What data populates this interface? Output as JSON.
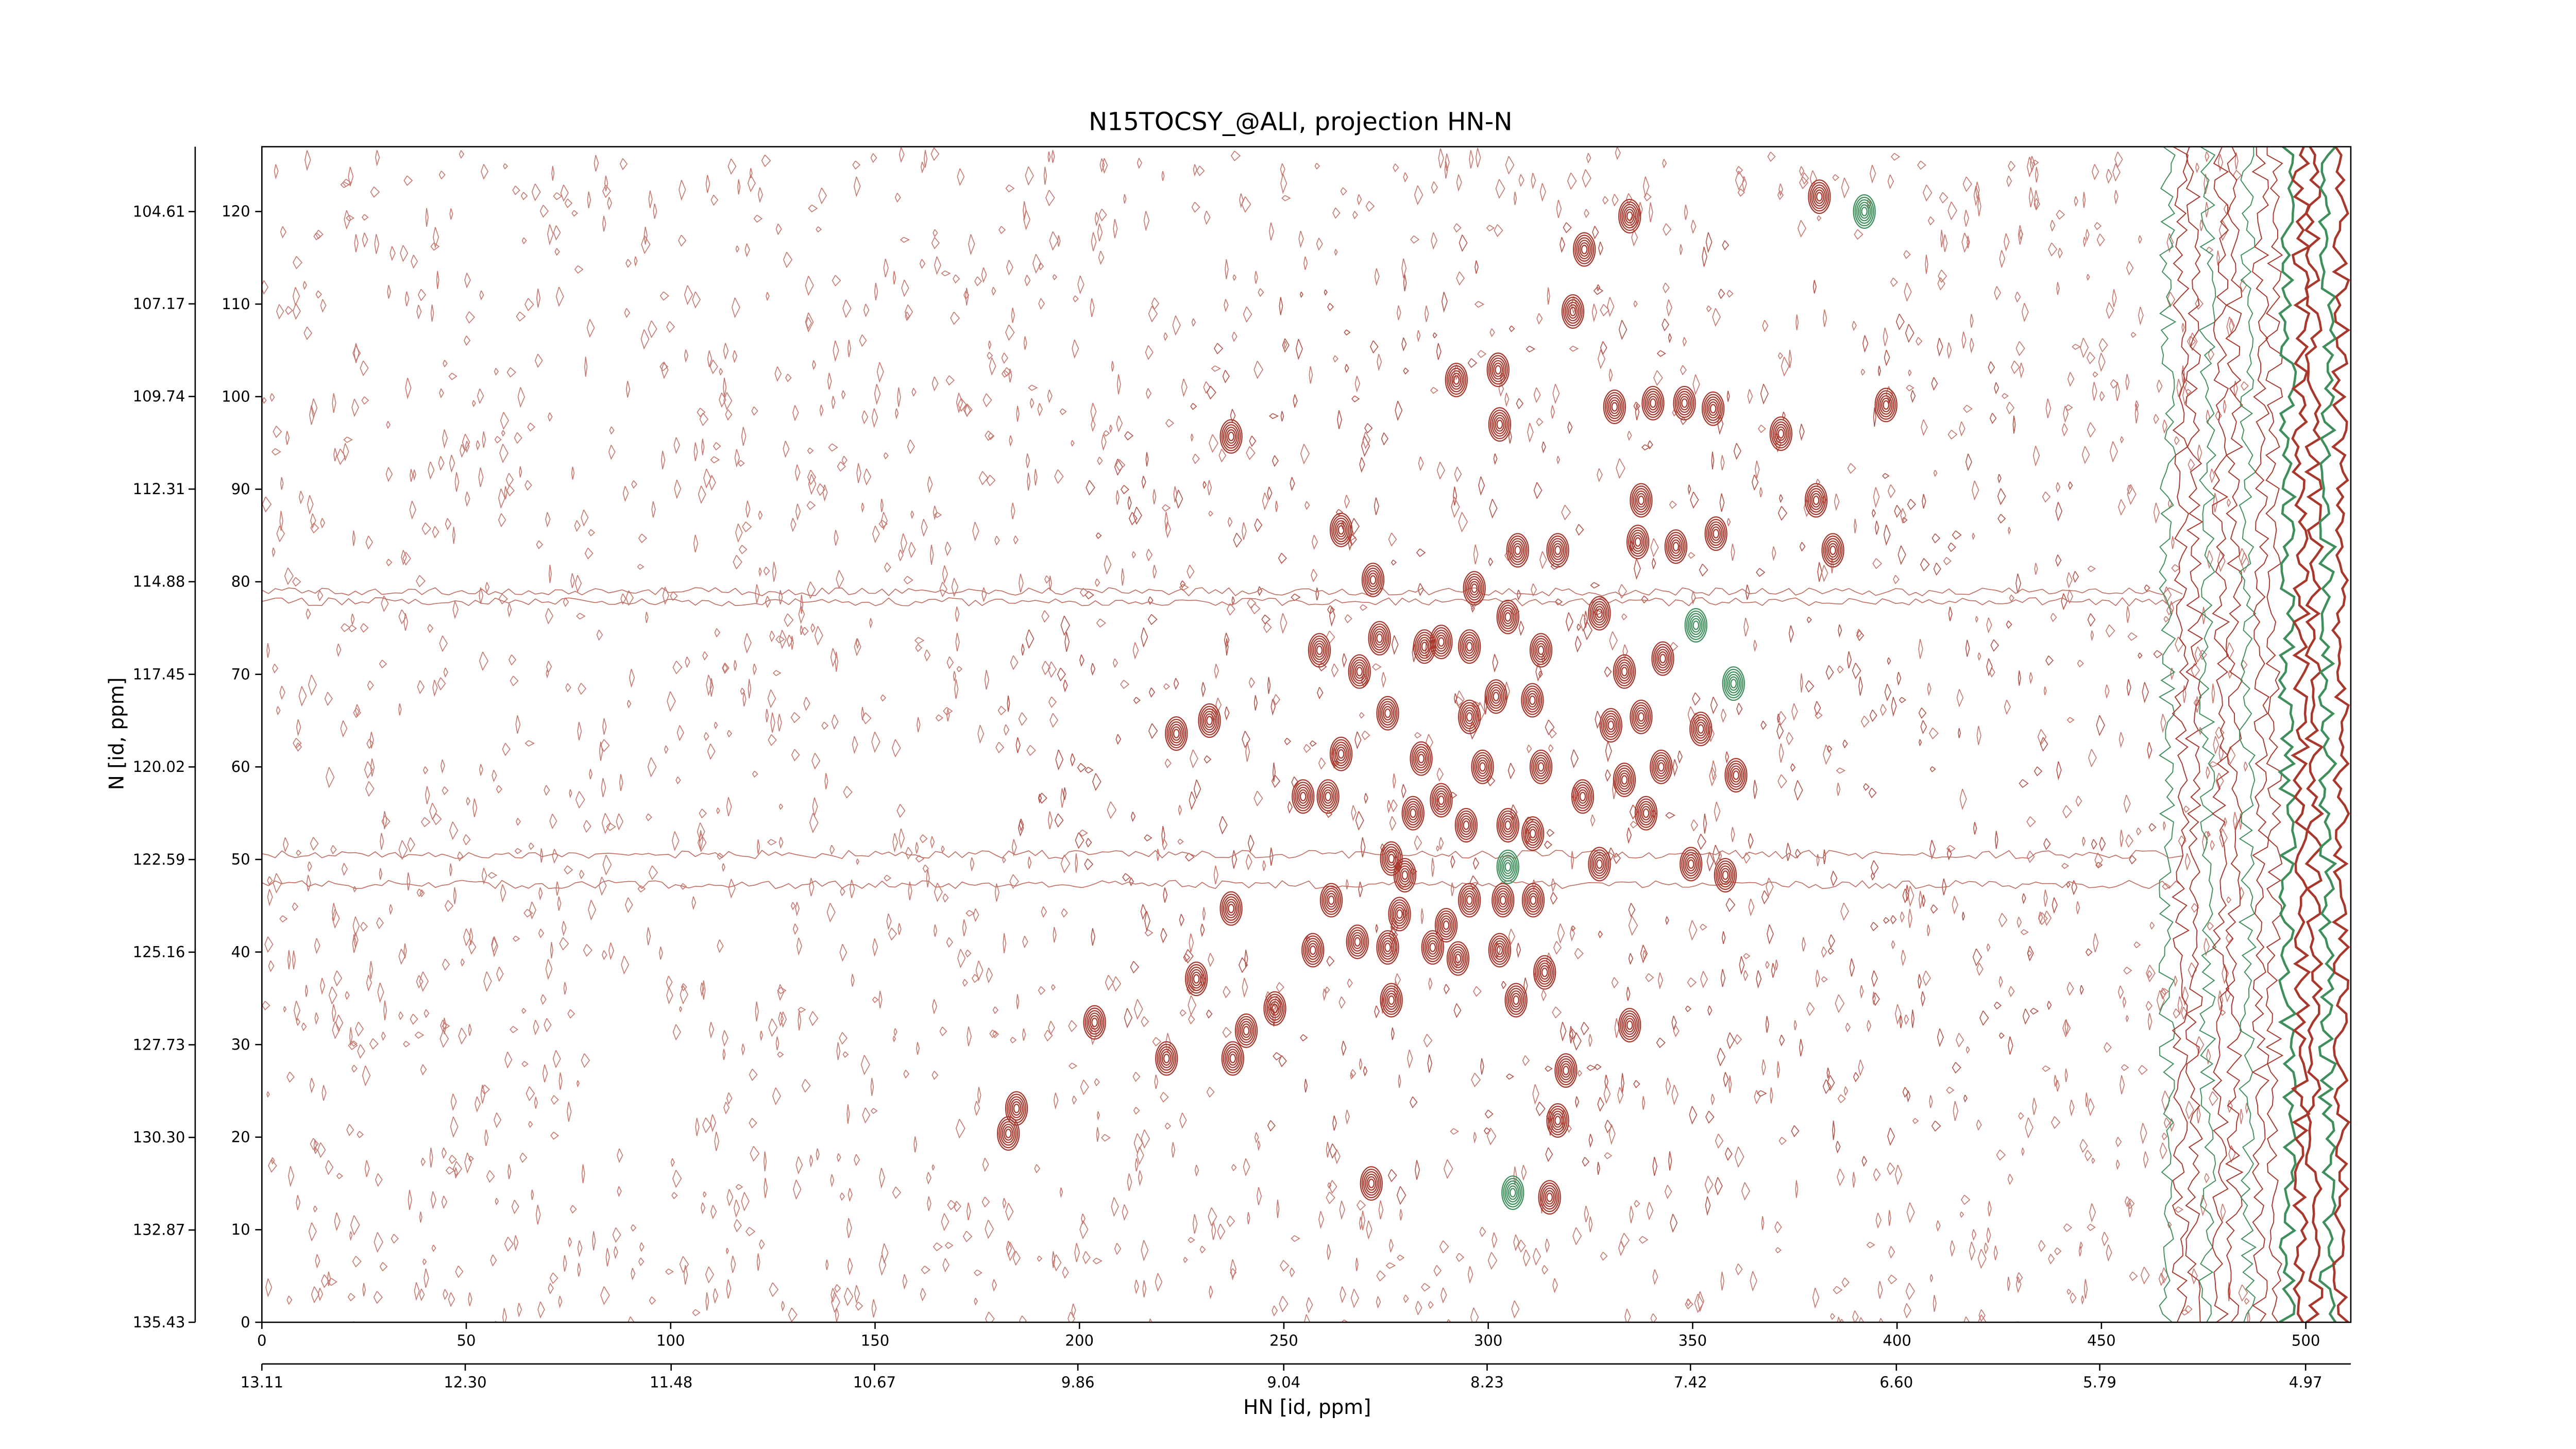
{
  "chart_data": {
    "type": "contour",
    "title": "N15TOCSY_@ALI, projection HN-N",
    "xlabel": "HN [id, ppm]",
    "ylabel": "N [id, ppm]",
    "xlim": [
      0,
      511
    ],
    "xticks": [
      0,
      50,
      100,
      150,
      200,
      250,
      300,
      350,
      400,
      450,
      500
    ],
    "ylim": [
      0,
      127
    ],
    "yticks": [
      0,
      10,
      20,
      30,
      40,
      50,
      60,
      70,
      80,
      90,
      100,
      110,
      120
    ],
    "x2lim": [
      13.11,
      4.79
    ],
    "x2ticks": [
      13.11,
      {
        "value": 12.3,
        "label": "12.30"
      },
      11.48,
      10.67,
      9.86,
      9.04,
      8.23,
      7.42,
      {
        "value": 6.6,
        "label": "6.60"
      },
      5.79,
      4.97
    ],
    "y2lim": [
      135.43,
      102.81
    ],
    "y2ticks": [
      104.61,
      107.17,
      109.74,
      112.31,
      114.88,
      117.45,
      120.02,
      122.59,
      125.16,
      127.73,
      {
        "value": 130.3,
        "label": "130.30"
      },
      132.87,
      135.43
    ],
    "series": [
      {
        "color": "#a8372c",
        "x": [
          381,
          334.6,
          323.5,
          320.7,
          302.4,
          292.2,
          302.8,
          330.9,
          340.3,
          348,
          355,
          371.6,
          397.3,
          237.1,
          337.4,
          355.7,
          380.2,
          384.3,
          336.6,
          345.9,
          307.2,
          317,
          264,
          271.8,
          296.6,
          304.8,
          327.2,
          258.7,
          273.4,
          284.4,
          288.5,
          295.4,
          312.9,
          268.5,
          333.3,
          342.7,
          310.8,
          301.9,
          275.4,
          295.4,
          231.8,
          223.7,
          330,
          337.4,
          352,
          264,
          283.6,
          298.6,
          312.9,
          342.3,
          360.6,
          254.7,
          260.8,
          288.5,
          323.1,
          333.3,
          338.6,
          281.6,
          294.6,
          304.8,
          310.9,
          276.3,
          327.2,
          349.6,
          358,
          279.6,
          237.1,
          261.6,
          278.3,
          289.7,
          295.4,
          303.6,
          311,
          257.1,
          268,
          275.4,
          286.4,
          292.6,
          302.8,
          313.8,
          228.6,
          276.3,
          306.8,
          334.6,
          203.7,
          247.8,
          240.8,
          237.5,
          221.3,
          319,
          317,
          184.6,
          182.6,
          271.4,
          315
        ],
        "y": [
          121.6,
          119.5,
          115.9,
          109.2,
          102.9,
          101.8,
          97,
          98.9,
          99.3,
          99.3,
          98.7,
          96,
          99.1,
          95.7,
          88.8,
          85.2,
          88.8,
          83.4,
          84.3,
          83.8,
          83.4,
          83.4,
          85.6,
          80.2,
          79.3,
          76.2,
          76.6,
          72.6,
          73.9,
          73,
          73.5,
          73,
          72.6,
          70.3,
          70.3,
          71.7,
          67.2,
          67.6,
          65.8,
          65.4,
          65,
          63.6,
          64.5,
          65.4,
          64.1,
          61.4,
          60.9,
          60,
          60,
          60,
          59.1,
          56.8,
          56.8,
          56.4,
          56.8,
          58.6,
          55,
          55,
          53.7,
          53.7,
          52.8,
          50.1,
          49.5,
          49.5,
          48.3,
          48.3,
          44.7,
          45.6,
          44.1,
          42.9,
          45.6,
          45.6,
          45.6,
          40.2,
          41.1,
          40.5,
          40.5,
          39.3,
          40.2,
          37.8,
          37.1,
          34.8,
          34.8,
          32.1,
          32.4,
          33.9,
          31.5,
          28.5,
          28.5,
          27.2,
          21.8,
          23.1,
          20.4,
          15,
          13.5
        ]
      },
      {
        "color": "#3f8f5c",
        "x": [
          392,
          350.8,
          360,
          306,
          304.8
        ],
        "y": [
          120,
          75.3,
          69,
          14,
          49.2
        ]
      }
    ]
  }
}
